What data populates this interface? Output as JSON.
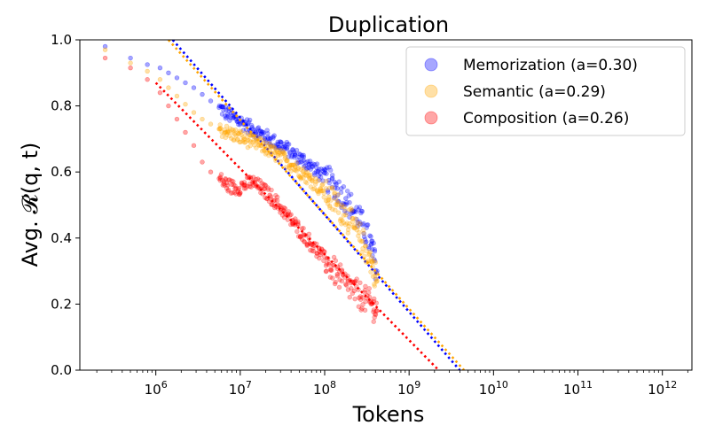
{
  "chart_data": {
    "type": "scatter",
    "title": "Duplication",
    "xlabel": "Tokens",
    "ylabel": "Avg. 𝓡(q, t)",
    "xscale": "log",
    "xlim_log10": [
      5.1,
      12.35
    ],
    "ylim": [
      0.0,
      1.0
    ],
    "x_ticks": [
      {
        "log10": 6,
        "base": "10",
        "exp": "6"
      },
      {
        "log10": 7,
        "base": "10",
        "exp": "7"
      },
      {
        "log10": 8,
        "base": "10",
        "exp": "8"
      },
      {
        "log10": 9,
        "base": "10",
        "exp": "9"
      },
      {
        "log10": 10,
        "base": "10",
        "exp": "10"
      },
      {
        "log10": 11,
        "base": "10",
        "exp": "11"
      },
      {
        "log10": 12,
        "base": "10",
        "exp": "12"
      }
    ],
    "y_ticks": [
      "0.0",
      "0.2",
      "0.4",
      "0.6",
      "0.8",
      "1.0"
    ],
    "grid": false,
    "legend_position": "top-right",
    "series": [
      {
        "name": "Memorization (a=0.30)",
        "color": "#0000ff",
        "fit_line": {
          "log10_x": [
            6.2,
            9.6
          ],
          "y": [
            1.0,
            0.0
          ]
        },
        "points_log10x_y": [
          [
            5.4,
            0.98
          ],
          [
            5.7,
            0.945
          ],
          [
            5.9,
            0.925
          ],
          [
            6.05,
            0.915
          ],
          [
            6.15,
            0.9
          ],
          [
            6.25,
            0.885
          ],
          [
            6.35,
            0.87
          ],
          [
            6.45,
            0.855
          ],
          [
            6.55,
            0.835
          ],
          [
            6.65,
            0.815
          ],
          [
            6.75,
            0.795
          ],
          [
            6.85,
            0.775
          ],
          [
            6.95,
            0.76
          ],
          [
            7.05,
            0.745
          ],
          [
            7.15,
            0.73
          ],
          [
            7.25,
            0.715
          ],
          [
            7.35,
            0.7
          ],
          [
            7.45,
            0.685
          ],
          [
            7.55,
            0.67
          ],
          [
            7.65,
            0.65
          ],
          [
            7.75,
            0.635
          ],
          [
            7.85,
            0.615
          ],
          [
            7.95,
            0.595
          ],
          [
            8.05,
            0.575
          ],
          [
            8.15,
            0.55
          ],
          [
            8.25,
            0.52
          ],
          [
            8.35,
            0.48
          ],
          [
            8.45,
            0.44
          ],
          [
            8.55,
            0.38
          ],
          [
            8.62,
            0.3
          ]
        ]
      },
      {
        "name": "Semantic (a=0.29)",
        "color": "#ffa500",
        "fit_line": {
          "log10_x": [
            6.15,
            9.65
          ],
          "y": [
            1.0,
            0.0
          ]
        },
        "points_log10x_y": [
          [
            5.4,
            0.97
          ],
          [
            5.7,
            0.93
          ],
          [
            5.9,
            0.905
          ],
          [
            6.05,
            0.88
          ],
          [
            6.15,
            0.855
          ],
          [
            6.25,
            0.83
          ],
          [
            6.35,
            0.805
          ],
          [
            6.45,
            0.78
          ],
          [
            6.55,
            0.76
          ],
          [
            6.65,
            0.745
          ],
          [
            6.75,
            0.73
          ],
          [
            6.85,
            0.72
          ],
          [
            6.95,
            0.71
          ],
          [
            7.05,
            0.7
          ],
          [
            7.15,
            0.69
          ],
          [
            7.25,
            0.68
          ],
          [
            7.35,
            0.665
          ],
          [
            7.45,
            0.65
          ],
          [
            7.55,
            0.635
          ],
          [
            7.65,
            0.615
          ],
          [
            7.75,
            0.595
          ],
          [
            7.85,
            0.575
          ],
          [
            7.95,
            0.55
          ],
          [
            8.05,
            0.525
          ],
          [
            8.15,
            0.5
          ],
          [
            8.25,
            0.47
          ],
          [
            8.35,
            0.43
          ],
          [
            8.45,
            0.39
          ],
          [
            8.55,
            0.33
          ],
          [
            8.62,
            0.27
          ]
        ]
      },
      {
        "name": "Composition (a=0.26)",
        "color": "#ff0000",
        "fit_line": {
          "log10_x": [
            6.0,
            9.35
          ],
          "y": [
            0.87,
            0.0
          ]
        },
        "points_log10x_y": [
          [
            5.4,
            0.945
          ],
          [
            5.7,
            0.915
          ],
          [
            5.9,
            0.88
          ],
          [
            6.05,
            0.84
          ],
          [
            6.15,
            0.8
          ],
          [
            6.25,
            0.76
          ],
          [
            6.35,
            0.72
          ],
          [
            6.45,
            0.68
          ],
          [
            6.55,
            0.63
          ],
          [
            6.65,
            0.6
          ],
          [
            6.75,
            0.58
          ],
          [
            6.85,
            0.56
          ],
          [
            6.95,
            0.55
          ],
          [
            7.05,
            0.56
          ],
          [
            7.15,
            0.57
          ],
          [
            7.25,
            0.55
          ],
          [
            7.35,
            0.53
          ],
          [
            7.45,
            0.5
          ],
          [
            7.55,
            0.47
          ],
          [
            7.65,
            0.44
          ],
          [
            7.75,
            0.41
          ],
          [
            7.85,
            0.38
          ],
          [
            7.95,
            0.35
          ],
          [
            8.05,
            0.32
          ],
          [
            8.15,
            0.29
          ],
          [
            8.25,
            0.26
          ],
          [
            8.35,
            0.24
          ],
          [
            8.45,
            0.22
          ],
          [
            8.55,
            0.2
          ],
          [
            8.62,
            0.18
          ]
        ]
      }
    ]
  }
}
